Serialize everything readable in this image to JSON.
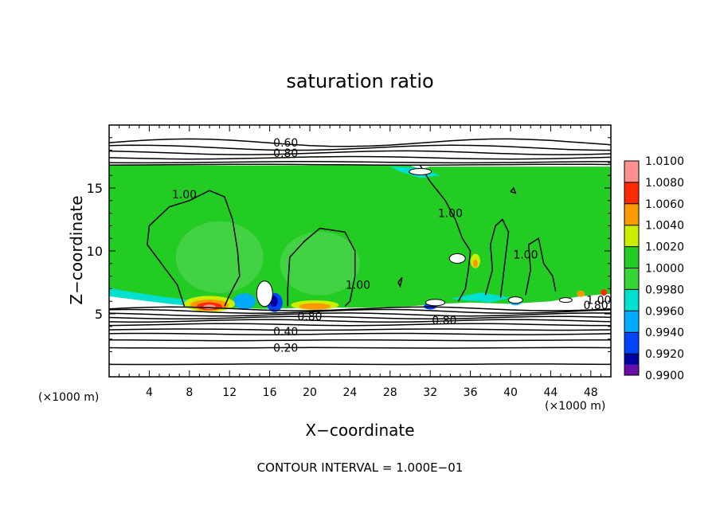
{
  "chart_data": {
    "type": "heatmap",
    "title": "saturation ratio",
    "xlabel": "X−coordinate",
    "ylabel": "Z−coordinate",
    "x_units": "(×1000 m)",
    "z_units": "(×1000 m)",
    "xlim": [
      0,
      50
    ],
    "ylim": [
      0,
      20
    ],
    "x_ticks": [
      4,
      8,
      12,
      16,
      20,
      24,
      28,
      32,
      36,
      40,
      44,
      48
    ],
    "y_ticks": [
      5,
      10,
      15
    ],
    "footer": "CONTOUR INTERVAL = 1.000E−01",
    "contour_labels": [
      "0.60",
      "0.80",
      "1.00",
      "1.00",
      "1.00",
      "1.00",
      "1.00",
      "0.80",
      "0.80",
      "0.80",
      "0.40",
      "0.20"
    ],
    "colorbar": {
      "min": 0.99,
      "max": 1.01,
      "labels": [
        "1.0100",
        "1.0080",
        "1.0060",
        "1.0040",
        "1.0020",
        "1.0000",
        "0.9980",
        "0.9960",
        "0.9940",
        "0.9920",
        "0.9900"
      ],
      "colors": [
        "#6a0dad",
        "#0000a0",
        "#0044ff",
        "#00aaff",
        "#00e0d0",
        "#33d633",
        "#22cc22",
        "#ccee00",
        "#ff9900",
        "#ff2a00",
        "#ff9090"
      ]
    }
  }
}
